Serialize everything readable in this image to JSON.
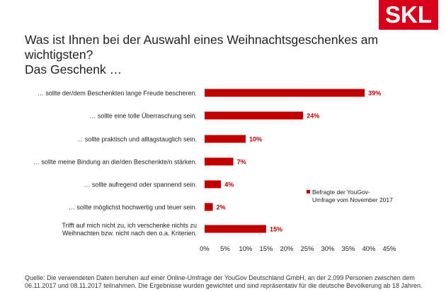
{
  "brand": {
    "logo_text": "SKL",
    "accent": "#d6001c"
  },
  "title_lines": [
    "Was ist Ihnen bei der Auswahl eines Weihnachtsgeschenkes am wichtigsten?",
    "Das Geschenk …"
  ],
  "chart_data": {
    "type": "bar",
    "orientation": "horizontal",
    "categories": [
      [
        "… sollte der/dem Beschenkten lange Freude bescheren."
      ],
      [
        "… sollte eine tolle Überraschung sein."
      ],
      [
        "… sollte praktisch und alltagstauglich sein."
      ],
      [
        "… sollte meine Bindung an die/den Beschenkte/n stärken."
      ],
      [
        "… sollte aufregend oder spannend sein."
      ],
      [
        "… sollte möglichst hochwertig und teuer sein."
      ],
      [
        "Trifft auf mich nicht zu, ich verschenke nichts zu",
        "Weihnachten bzw. nicht nach den o.a. Kriterien."
      ]
    ],
    "series": [
      {
        "name_lines": [
          "Befragte der YouGov-",
          "Umfrage vom November 2017"
        ],
        "values": [
          39,
          24,
          10,
          7,
          4,
          2,
          15
        ],
        "color": "#c00000"
      }
    ],
    "data_labels": [
      "39%",
      "24%",
      "10%",
      "7%",
      "4%",
      "2%",
      "15%"
    ],
    "x_ticks": [
      "0%",
      "5%",
      "10%",
      "15%",
      "20%",
      "25%",
      "30%",
      "35%",
      "40%",
      "45%"
    ],
    "xlim": [
      0,
      45
    ],
    "grid": false,
    "legend_position": "right"
  },
  "source_text": "Quelle: Die verwendeten  Daten beruhen auf einer Online-Umfrage  der YouGov Deutschland GmbH, an der 2.099 Personen zwischen dem 06.11.2017 und 08.11.2017 teilnahmen. Die Ergebnisse wurden  gewichtet und sind repräsentativ für die deutsche Bevölkerung  ab 18 Jahren."
}
